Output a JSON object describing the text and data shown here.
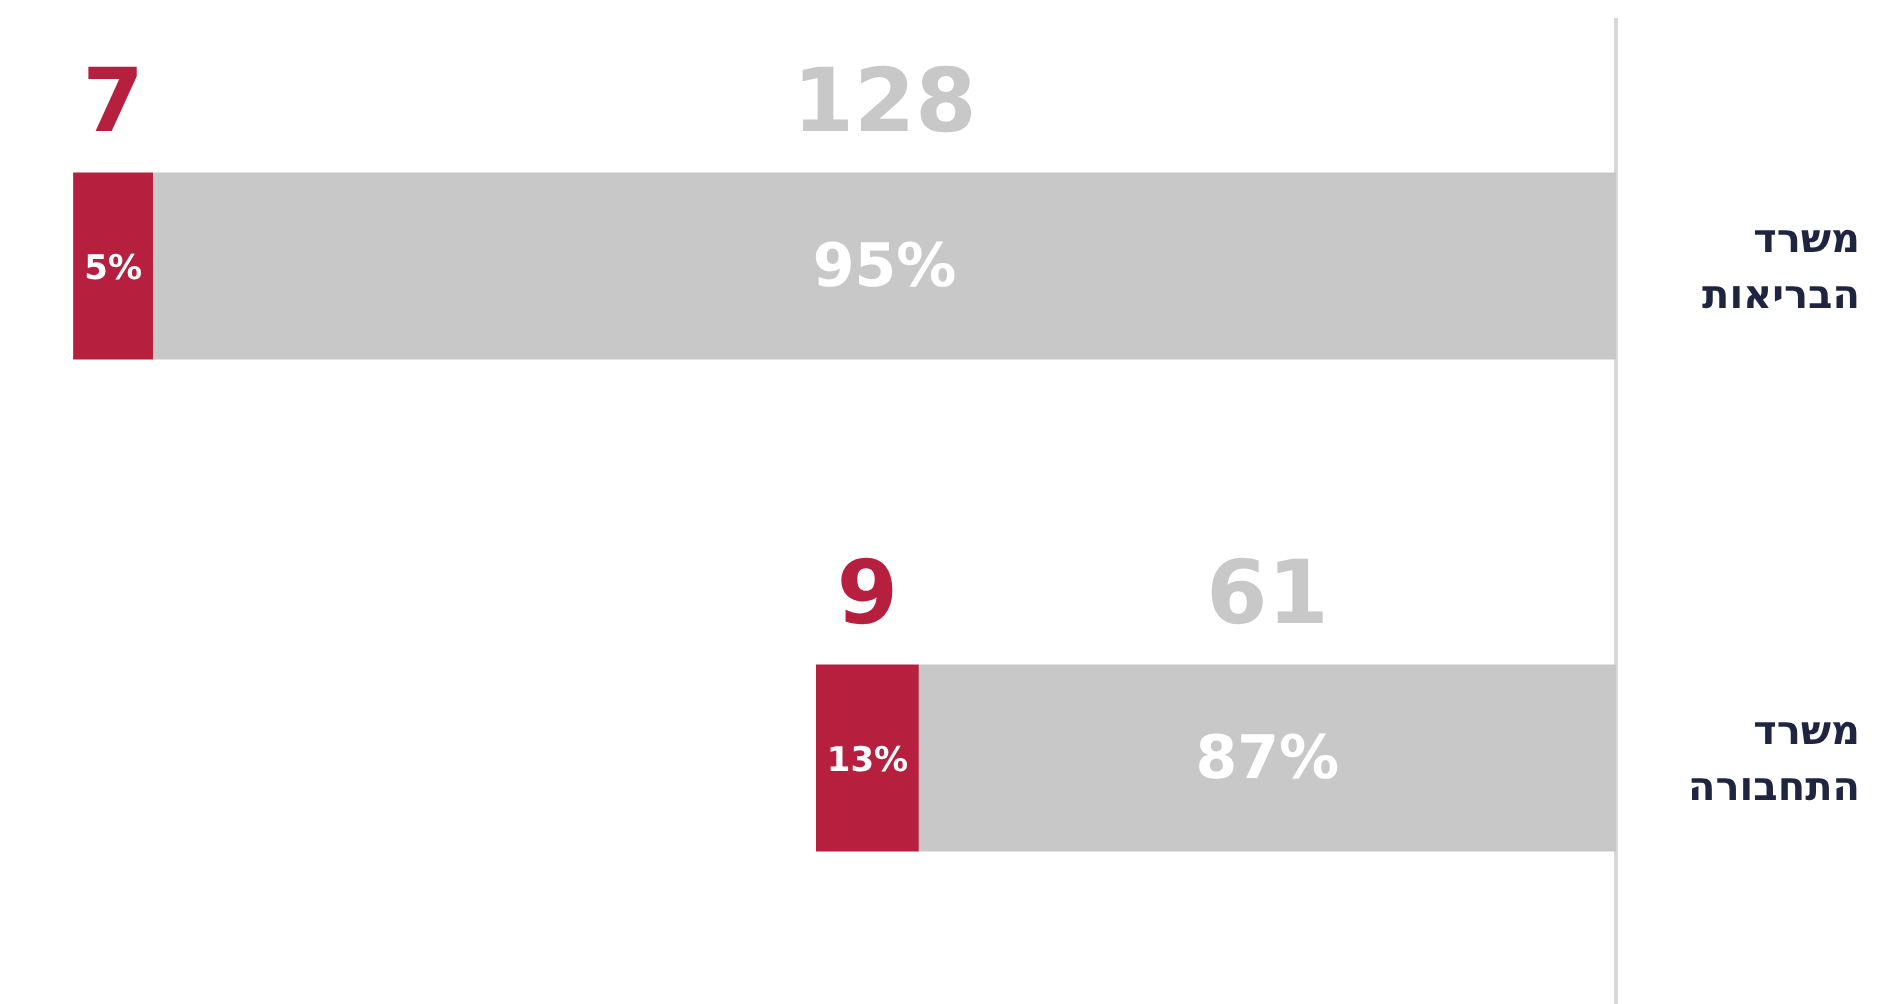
{
  "chart_data": {
    "type": "bar",
    "orientation": "horizontal",
    "stacked": true,
    "categories": [
      "משרד הבריאות",
      "משרד התחבורה"
    ],
    "series": [
      {
        "color": "#c8c8c8",
        "values": [
          128,
          61
        ]
      },
      {
        "color": "#b71f3f",
        "values": [
          7,
          9
        ]
      }
    ],
    "tick_labels": "y",
    "data_labels": true,
    "grid": false,
    "legend": false,
    "annotations": [
      "95%",
      "87%",
      "5%",
      "13%"
    ]
  }
}
